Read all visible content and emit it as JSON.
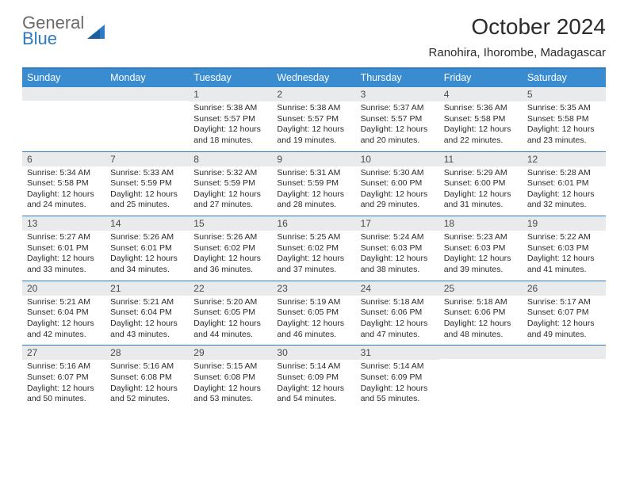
{
  "logo": {
    "part1": "General",
    "part2": "Blue"
  },
  "title": "October 2024",
  "location": "Ranohira, Ihorombe, Madagascar",
  "colors": {
    "header_bg": "#3a8cd1",
    "border": "#2f7ac0",
    "daynum_bg": "#e9eaeb",
    "text": "#2b2b2b",
    "logo_gray": "#6a6a6a",
    "logo_blue": "#2f7ac0"
  },
  "dows": [
    "Sunday",
    "Monday",
    "Tuesday",
    "Wednesday",
    "Thursday",
    "Friday",
    "Saturday"
  ],
  "weeks": [
    [
      null,
      null,
      {
        "n": "1",
        "sr": "5:38 AM",
        "ss": "5:57 PM",
        "dl": "12 hours and 18 minutes."
      },
      {
        "n": "2",
        "sr": "5:38 AM",
        "ss": "5:57 PM",
        "dl": "12 hours and 19 minutes."
      },
      {
        "n": "3",
        "sr": "5:37 AM",
        "ss": "5:57 PM",
        "dl": "12 hours and 20 minutes."
      },
      {
        "n": "4",
        "sr": "5:36 AM",
        "ss": "5:58 PM",
        "dl": "12 hours and 22 minutes."
      },
      {
        "n": "5",
        "sr": "5:35 AM",
        "ss": "5:58 PM",
        "dl": "12 hours and 23 minutes."
      }
    ],
    [
      {
        "n": "6",
        "sr": "5:34 AM",
        "ss": "5:58 PM",
        "dl": "12 hours and 24 minutes."
      },
      {
        "n": "7",
        "sr": "5:33 AM",
        "ss": "5:59 PM",
        "dl": "12 hours and 25 minutes."
      },
      {
        "n": "8",
        "sr": "5:32 AM",
        "ss": "5:59 PM",
        "dl": "12 hours and 27 minutes."
      },
      {
        "n": "9",
        "sr": "5:31 AM",
        "ss": "5:59 PM",
        "dl": "12 hours and 28 minutes."
      },
      {
        "n": "10",
        "sr": "5:30 AM",
        "ss": "6:00 PM",
        "dl": "12 hours and 29 minutes."
      },
      {
        "n": "11",
        "sr": "5:29 AM",
        "ss": "6:00 PM",
        "dl": "12 hours and 31 minutes."
      },
      {
        "n": "12",
        "sr": "5:28 AM",
        "ss": "6:01 PM",
        "dl": "12 hours and 32 minutes."
      }
    ],
    [
      {
        "n": "13",
        "sr": "5:27 AM",
        "ss": "6:01 PM",
        "dl": "12 hours and 33 minutes."
      },
      {
        "n": "14",
        "sr": "5:26 AM",
        "ss": "6:01 PM",
        "dl": "12 hours and 34 minutes."
      },
      {
        "n": "15",
        "sr": "5:26 AM",
        "ss": "6:02 PM",
        "dl": "12 hours and 36 minutes."
      },
      {
        "n": "16",
        "sr": "5:25 AM",
        "ss": "6:02 PM",
        "dl": "12 hours and 37 minutes."
      },
      {
        "n": "17",
        "sr": "5:24 AM",
        "ss": "6:03 PM",
        "dl": "12 hours and 38 minutes."
      },
      {
        "n": "18",
        "sr": "5:23 AM",
        "ss": "6:03 PM",
        "dl": "12 hours and 39 minutes."
      },
      {
        "n": "19",
        "sr": "5:22 AM",
        "ss": "6:03 PM",
        "dl": "12 hours and 41 minutes."
      }
    ],
    [
      {
        "n": "20",
        "sr": "5:21 AM",
        "ss": "6:04 PM",
        "dl": "12 hours and 42 minutes."
      },
      {
        "n": "21",
        "sr": "5:21 AM",
        "ss": "6:04 PM",
        "dl": "12 hours and 43 minutes."
      },
      {
        "n": "22",
        "sr": "5:20 AM",
        "ss": "6:05 PM",
        "dl": "12 hours and 44 minutes."
      },
      {
        "n": "23",
        "sr": "5:19 AM",
        "ss": "6:05 PM",
        "dl": "12 hours and 46 minutes."
      },
      {
        "n": "24",
        "sr": "5:18 AM",
        "ss": "6:06 PM",
        "dl": "12 hours and 47 minutes."
      },
      {
        "n": "25",
        "sr": "5:18 AM",
        "ss": "6:06 PM",
        "dl": "12 hours and 48 minutes."
      },
      {
        "n": "26",
        "sr": "5:17 AM",
        "ss": "6:07 PM",
        "dl": "12 hours and 49 minutes."
      }
    ],
    [
      {
        "n": "27",
        "sr": "5:16 AM",
        "ss": "6:07 PM",
        "dl": "12 hours and 50 minutes."
      },
      {
        "n": "28",
        "sr": "5:16 AM",
        "ss": "6:08 PM",
        "dl": "12 hours and 52 minutes."
      },
      {
        "n": "29",
        "sr": "5:15 AM",
        "ss": "6:08 PM",
        "dl": "12 hours and 53 minutes."
      },
      {
        "n": "30",
        "sr": "5:14 AM",
        "ss": "6:09 PM",
        "dl": "12 hours and 54 minutes."
      },
      {
        "n": "31",
        "sr": "5:14 AM",
        "ss": "6:09 PM",
        "dl": "12 hours and 55 minutes."
      },
      null,
      null
    ]
  ],
  "labels": {
    "sunrise": "Sunrise:",
    "sunset": "Sunset:",
    "daylight": "Daylight:"
  }
}
